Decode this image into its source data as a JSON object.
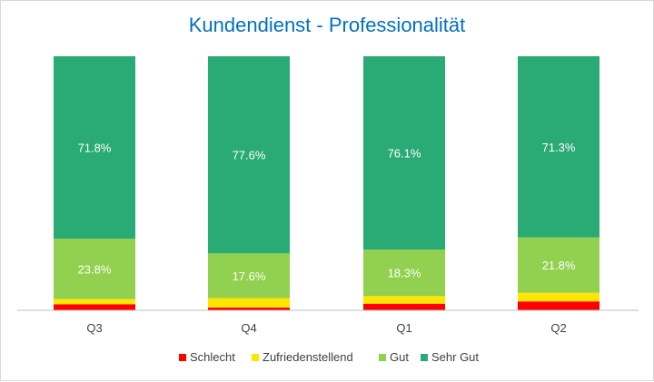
{
  "chart_data": {
    "type": "bar",
    "stacked": true,
    "title": "Kundendienst - Professionalität",
    "xlabel": "",
    "ylabel": "",
    "ylim": [
      0,
      100
    ],
    "categories": [
      "Q3",
      "Q4",
      "Q1",
      "Q2"
    ],
    "series": [
      {
        "name": "Schlecht",
        "color": "#ff0000",
        "values": [
          2.4,
          1.1,
          2.6,
          3.5
        ],
        "labels": [
          "",
          "",
          "",
          ""
        ]
      },
      {
        "name": "Zufriedenstellend",
        "color": "#ffe600",
        "values": [
          2.0,
          3.7,
          3.0,
          3.4
        ],
        "labels": [
          "",
          "",
          "",
          ""
        ]
      },
      {
        "name": "Gut",
        "color": "#92d050",
        "values": [
          23.8,
          17.6,
          18.3,
          21.8
        ],
        "labels": [
          "23.8%",
          "17.6%",
          "18.3%",
          "21.8%"
        ]
      },
      {
        "name": "Sehr Gut",
        "color": "#2aab76",
        "values": [
          71.8,
          77.6,
          76.1,
          71.3
        ],
        "labels": [
          "71.8%",
          "77.6%",
          "76.1%",
          "71.3%"
        ]
      }
    ],
    "legend_position": "bottom",
    "grid": false,
    "colors": {
      "title": "#0070c0",
      "label_on_bar": "#ffffff",
      "tick_label": "#404040",
      "axis": "#bfbfbf"
    }
  }
}
